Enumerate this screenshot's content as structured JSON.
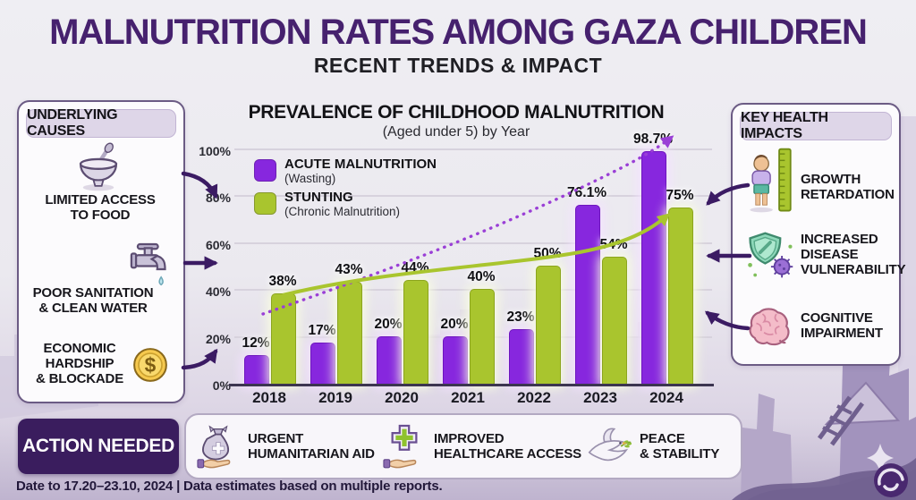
{
  "header": {
    "title": "MALNUTRITION RATES AMONG GAZA CHILDREN",
    "subtitle": "RECENT TRENDS & IMPACT"
  },
  "causes_panel": {
    "title": "UNDERLYING CAUSES",
    "items": [
      {
        "icon": "bowl-icon",
        "label": "LIMITED ACCESS\nTO FOOD"
      },
      {
        "icon": "faucet-icon",
        "label": "POOR SANITATION\n& CLEAN WATER"
      },
      {
        "icon": "coin-icon",
        "icon_glyph": "$",
        "label": "ECONOMIC\nHARDSHIP\n& BLOCKADE"
      }
    ]
  },
  "impacts_panel": {
    "title": "KEY HEALTH IMPACTS",
    "items": [
      {
        "icon": "child-height-icon",
        "label": "GROWTH\nRETARDATION"
      },
      {
        "icon": "shield-virus-icon",
        "label": "INCREASED\nDISEASE\nVULNERABILITY"
      },
      {
        "icon": "brain-icon",
        "label": "COGNITIVE\nIMPAIRMENT"
      }
    ]
  },
  "chart_data": {
    "type": "bar",
    "title": "PREVALENCE OF CHILDHOOD MALNUTRITION",
    "subtitle": "(Aged under 5) by Year",
    "categories": [
      "2018",
      "2019",
      "2020",
      "2021",
      "2022",
      "2023",
      "2024"
    ],
    "series": [
      {
        "name": "ACUTE MALNUTRITION",
        "subname": "(Wasting)",
        "color": "#8727de",
        "values": [
          12,
          17,
          20,
          20,
          23,
          76.1,
          98.7
        ],
        "labels": [
          "12%",
          "17%",
          "20%",
          "20%",
          "23%",
          "76.1%",
          "98.7%"
        ]
      },
      {
        "name": "STUNTING",
        "subname": "(Chronic Malnutrition)",
        "color": "#a9c52e",
        "values": [
          38,
          43,
          44,
          40,
          50,
          54,
          75
        ],
        "labels": [
          "38%",
          "43%",
          "44%",
          "40%",
          "50%",
          "54%",
          "75%"
        ]
      }
    ],
    "ylim": [
      0,
      100
    ],
    "ytick_values": [
      0,
      20,
      40,
      60,
      80,
      100
    ],
    "yticks": [
      "0%",
      "20%",
      "40%",
      "60%",
      "80%",
      "100%"
    ],
    "grid": true,
    "legend_position": "upper-left-inside",
    "annotations": [
      "rising dotted trend arrow (acute)",
      "rising solid trend line (stunting)"
    ]
  },
  "actions": {
    "title": "ACTION NEEDED",
    "items": [
      {
        "icon": "aid-bag-icon",
        "label": "URGENT\nHUMANITARIAN AID"
      },
      {
        "icon": "healthcare-cross-icon",
        "label": "IMPROVED\nHEALTHCARE ACCESS"
      },
      {
        "icon": "dove-icon",
        "label": "PEACE\n& STABILITY"
      }
    ]
  },
  "footer": {
    "note": "Date to 17.20–23.10, 2024 | Data estimates based on multiple reports."
  },
  "colors": {
    "title_purple": "#46216e",
    "bar_purple": "#8727de",
    "bar_green": "#a9c52e",
    "action_bg": "#3a1d5e",
    "arrow_purple": "#3b1b63"
  }
}
